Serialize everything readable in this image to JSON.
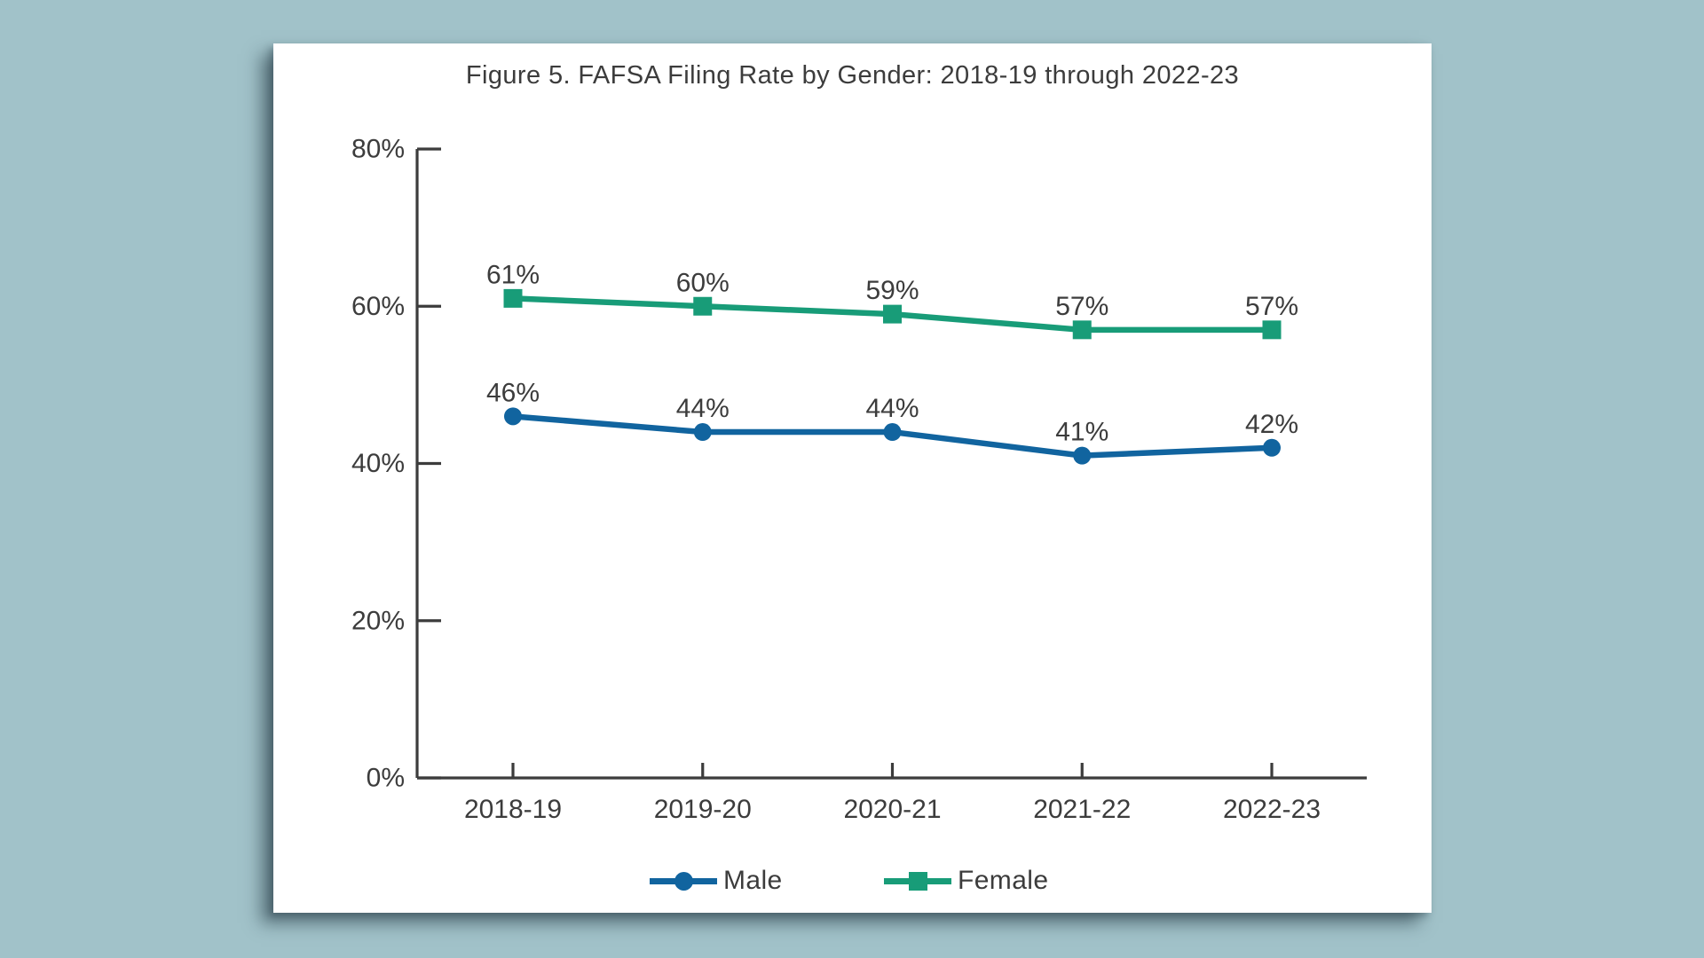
{
  "page": {
    "background_color": "#a1c2c9",
    "card_color": "#ffffff"
  },
  "chart_data": {
    "type": "line",
    "title": "Figure 5. FAFSA Filing Rate by Gender: 2018-19 through 2022-23",
    "categories": [
      "2018-19",
      "2019-20",
      "2020-21",
      "2021-22",
      "2022-23"
    ],
    "series": [
      {
        "name": "Male",
        "color": "#11649f",
        "marker": "circle",
        "values": [
          46,
          44,
          44,
          41,
          42
        ],
        "labels": [
          "46%",
          "44%",
          "44%",
          "41%",
          "42%"
        ]
      },
      {
        "name": "Female",
        "color": "#189c78",
        "marker": "square",
        "values": [
          61,
          60,
          59,
          57,
          57
        ],
        "labels": [
          "61%",
          "60%",
          "59%",
          "57%",
          "57%"
        ]
      }
    ],
    "ylim": [
      0,
      80
    ],
    "yticks": [
      0,
      20,
      40,
      60,
      80
    ],
    "ytick_labels": [
      "0%",
      "20%",
      "40%",
      "60%",
      "80%"
    ],
    "grid": false,
    "legend_position": "bottom",
    "axis_color": "#3c3c3c",
    "text_color": "#3c3c3c"
  }
}
